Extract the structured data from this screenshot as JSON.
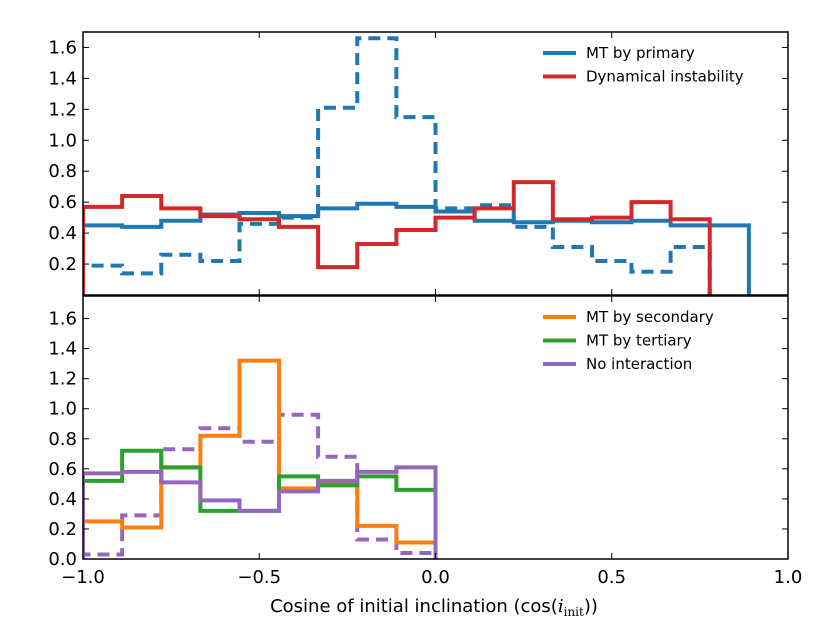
{
  "chart_data": {
    "type": "line",
    "xlabel": {
      "prefix": "Cosine of initial inclination (cos(",
      "var": "i",
      "sub": "init",
      "suffix": "))"
    },
    "xlim": [
      -1.0,
      1.0
    ],
    "xticks": [
      -1.0,
      -0.5,
      0.0,
      0.5,
      1.0
    ],
    "xtick_labels": [
      "−1.0",
      "−0.5",
      "0.0",
      "0.5",
      "1.0"
    ],
    "bin_edges": [
      -1.0,
      -0.889,
      -0.778,
      -0.667,
      -0.556,
      -0.444,
      -0.333,
      -0.222,
      -0.111,
      0.0,
      0.111,
      0.222,
      0.333,
      0.444,
      0.556,
      0.667,
      0.778,
      0.889,
      1.0
    ],
    "panels": [
      {
        "name": "top",
        "ylim": [
          0.0,
          1.7
        ],
        "yticks": [
          0.2,
          0.4,
          0.6,
          0.8,
          1.0,
          1.2,
          1.4,
          1.6
        ],
        "ytick_labels": [
          "0.2",
          "0.4",
          "0.6",
          "0.8",
          "1.0",
          "1.2",
          "1.4",
          "1.6"
        ],
        "legend_position": "top-right",
        "legend": [
          {
            "label": "MT by primary",
            "color": "#1f77b4"
          },
          {
            "label": "Dynamical instability",
            "color": "#d62728"
          }
        ],
        "series": [
          {
            "name": "MT by primary (dashed)",
            "color": "#1f77b4",
            "dashed": true,
            "step": 1,
            "values": [
              0.19,
              0.14,
              0.26,
              0.22,
              0.46,
              0.5,
              1.21,
              1.66,
              1.15,
              0.56,
              0.58,
              0.44,
              0.31,
              0.22,
              0.15,
              0.31
            ]
          },
          {
            "name": "MT by primary",
            "color": "#1f77b4",
            "dashed": false,
            "step": 1,
            "values": [
              0.45,
              0.44,
              0.48,
              0.52,
              0.53,
              0.51,
              0.56,
              0.59,
              0.57,
              0.54,
              0.48,
              0.47,
              0.48,
              0.47,
              0.48,
              0.45,
              0.45
            ]
          },
          {
            "name": "Dynamical instability",
            "color": "#d62728",
            "dashed": false,
            "step": 1,
            "values": [
              0.57,
              0.64,
              0.56,
              0.51,
              0.49,
              0.44,
              0.18,
              0.33,
              0.42,
              0.5,
              0.56,
              0.73,
              0.49,
              0.5,
              0.6,
              0.49
            ]
          }
        ]
      },
      {
        "name": "bottom",
        "ylim": [
          0.0,
          1.75
        ],
        "yticks": [
          0.0,
          0.2,
          0.4,
          0.6,
          0.8,
          1.0,
          1.2,
          1.4,
          1.6
        ],
        "ytick_labels": [
          "0.0",
          "0.2",
          "0.4",
          "0.6",
          "0.8",
          "1.0",
          "1.2",
          "1.4",
          "1.6"
        ],
        "legend_position": "top-right",
        "legend": [
          {
            "label": "MT by secondary",
            "color": "#ff7f0e"
          },
          {
            "label": "MT by tertiary",
            "color": "#2ca02c"
          },
          {
            "label": "No interaction",
            "color": "#9467bd"
          }
        ],
        "series": [
          {
            "name": "No interaction (dashed)",
            "color": "#9467bd",
            "dashed": true,
            "step": 1,
            "values": [
              0.03,
              0.29,
              0.73,
              0.87,
              0.78,
              0.96,
              0.68,
              0.13,
              0.04
            ]
          },
          {
            "name": "MT by secondary",
            "color": "#ff7f0e",
            "dashed": false,
            "step": 1,
            "values": [
              0.25,
              0.21,
              0.61,
              0.82,
              1.32,
              0.47,
              0.51,
              0.22,
              0.11
            ]
          },
          {
            "name": "MT by tertiary",
            "color": "#2ca02c",
            "dashed": false,
            "step": 1,
            "values": [
              0.52,
              0.72,
              0.61,
              0.32,
              0.32,
              0.55,
              0.49,
              0.55,
              0.46
            ]
          },
          {
            "name": "No interaction",
            "color": "#9467bd",
            "dashed": false,
            "step": 1,
            "values": [
              0.57,
              0.58,
              0.51,
              0.39,
              0.32,
              0.45,
              0.52,
              0.58,
              0.61
            ]
          }
        ]
      }
    ]
  }
}
